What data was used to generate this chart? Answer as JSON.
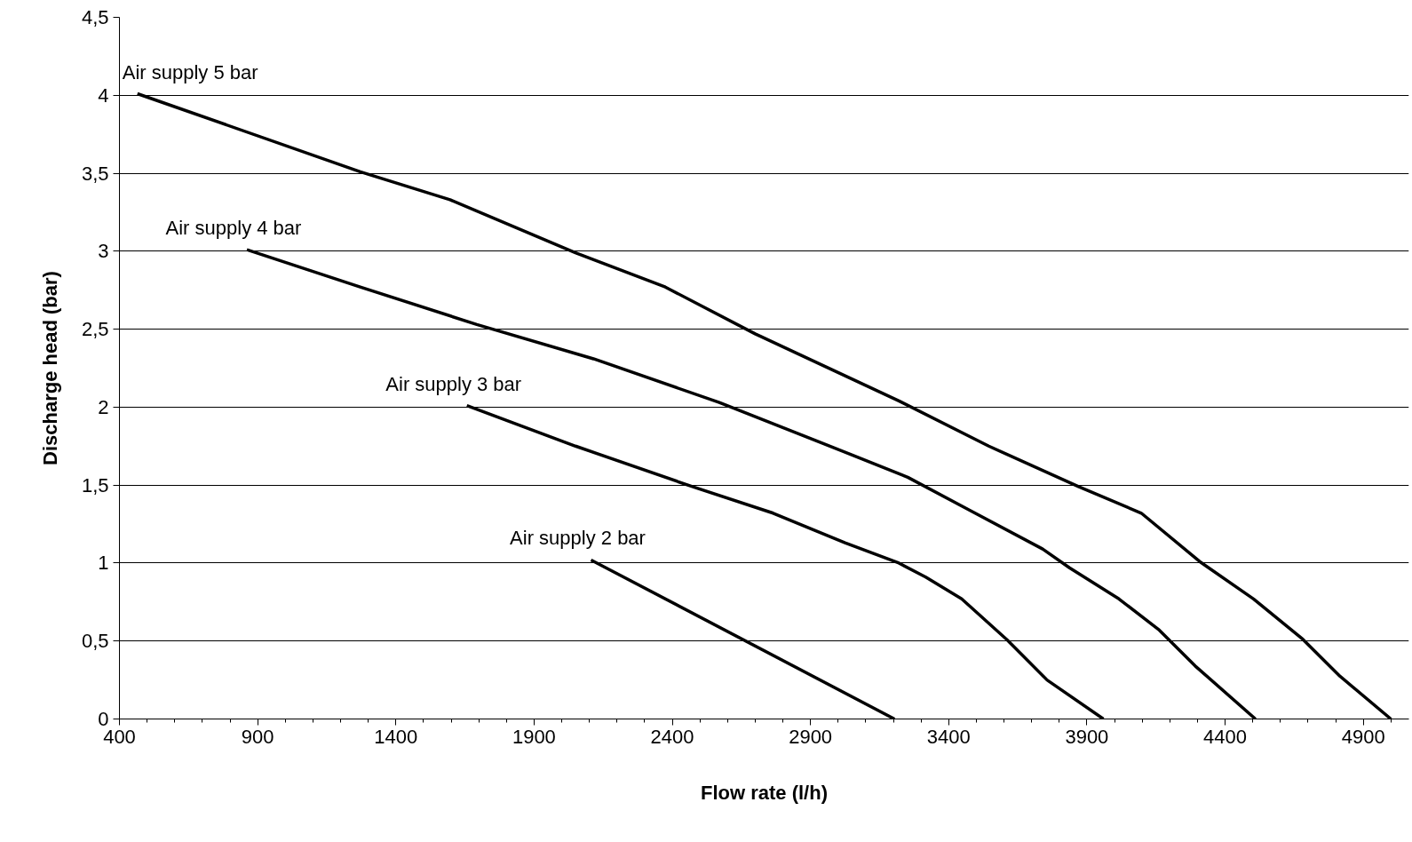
{
  "chart_data": {
    "type": "line",
    "xlabel": "Flow rate (l/h)",
    "ylabel": "Discharge head (bar)",
    "xlim": [
      400,
      5065
    ],
    "ylim": [
      0,
      4.5
    ],
    "xticks": [
      400,
      900,
      1400,
      1900,
      2400,
      2900,
      3400,
      3900,
      4400,
      4900
    ],
    "yticks": [
      0,
      {
        "value": 0.5,
        "label": "0,5"
      },
      1,
      {
        "value": 1.5,
        "label": "1,5"
      },
      2,
      {
        "value": 2.5,
        "label": "2,5"
      },
      3,
      {
        "value": 3.5,
        "label": "3,5"
      },
      4,
      {
        "value": 4.5,
        "label": "4,5"
      }
    ],
    "grid": "y",
    "legend": false,
    "marker": "none",
    "line_style": "solid",
    "series": [
      {
        "name": "Air supply 5 bar",
        "color": "#000000",
        "x": [
          465,
          1271,
          1596,
          2050,
          2375,
          2700,
          3220,
          3545,
          3870,
          4097,
          4308,
          4503,
          4682,
          4812,
          5000
        ],
        "values": [
          4.01,
          3.51,
          3.33,
          2.99,
          2.77,
          2.47,
          2.04,
          1.75,
          1.49,
          1.32,
          1.01,
          0.77,
          0.51,
          0.28,
          0
        ]
      },
      {
        "name": "Air supply 4 bar",
        "color": "#000000",
        "x": [
          861,
          1271,
          1693,
          2115,
          2570,
          2928,
          3252,
          3464,
          3740,
          3837,
          4016,
          4162,
          4292,
          4510
        ],
        "values": [
          3.01,
          2.77,
          2.53,
          2.31,
          2.03,
          1.78,
          1.55,
          1.35,
          1.09,
          0.97,
          0.77,
          0.57,
          0.34,
          0
        ]
      },
      {
        "name": "Air supply 3 bar",
        "color": "#000000",
        "x": [
          1657,
          2050,
          2473,
          2765,
          3025,
          3220,
          3317,
          3447,
          3610,
          3756,
          3960
        ],
        "values": [
          2.01,
          1.75,
          1.49,
          1.32,
          1.13,
          1.0,
          0.91,
          0.77,
          0.51,
          0.25,
          0
        ]
      },
      {
        "name": "Air supply 2 bar",
        "color": "#000000",
        "x": [
          2106,
          3204
        ],
        "values": [
          1.02,
          0
        ]
      }
    ]
  }
}
